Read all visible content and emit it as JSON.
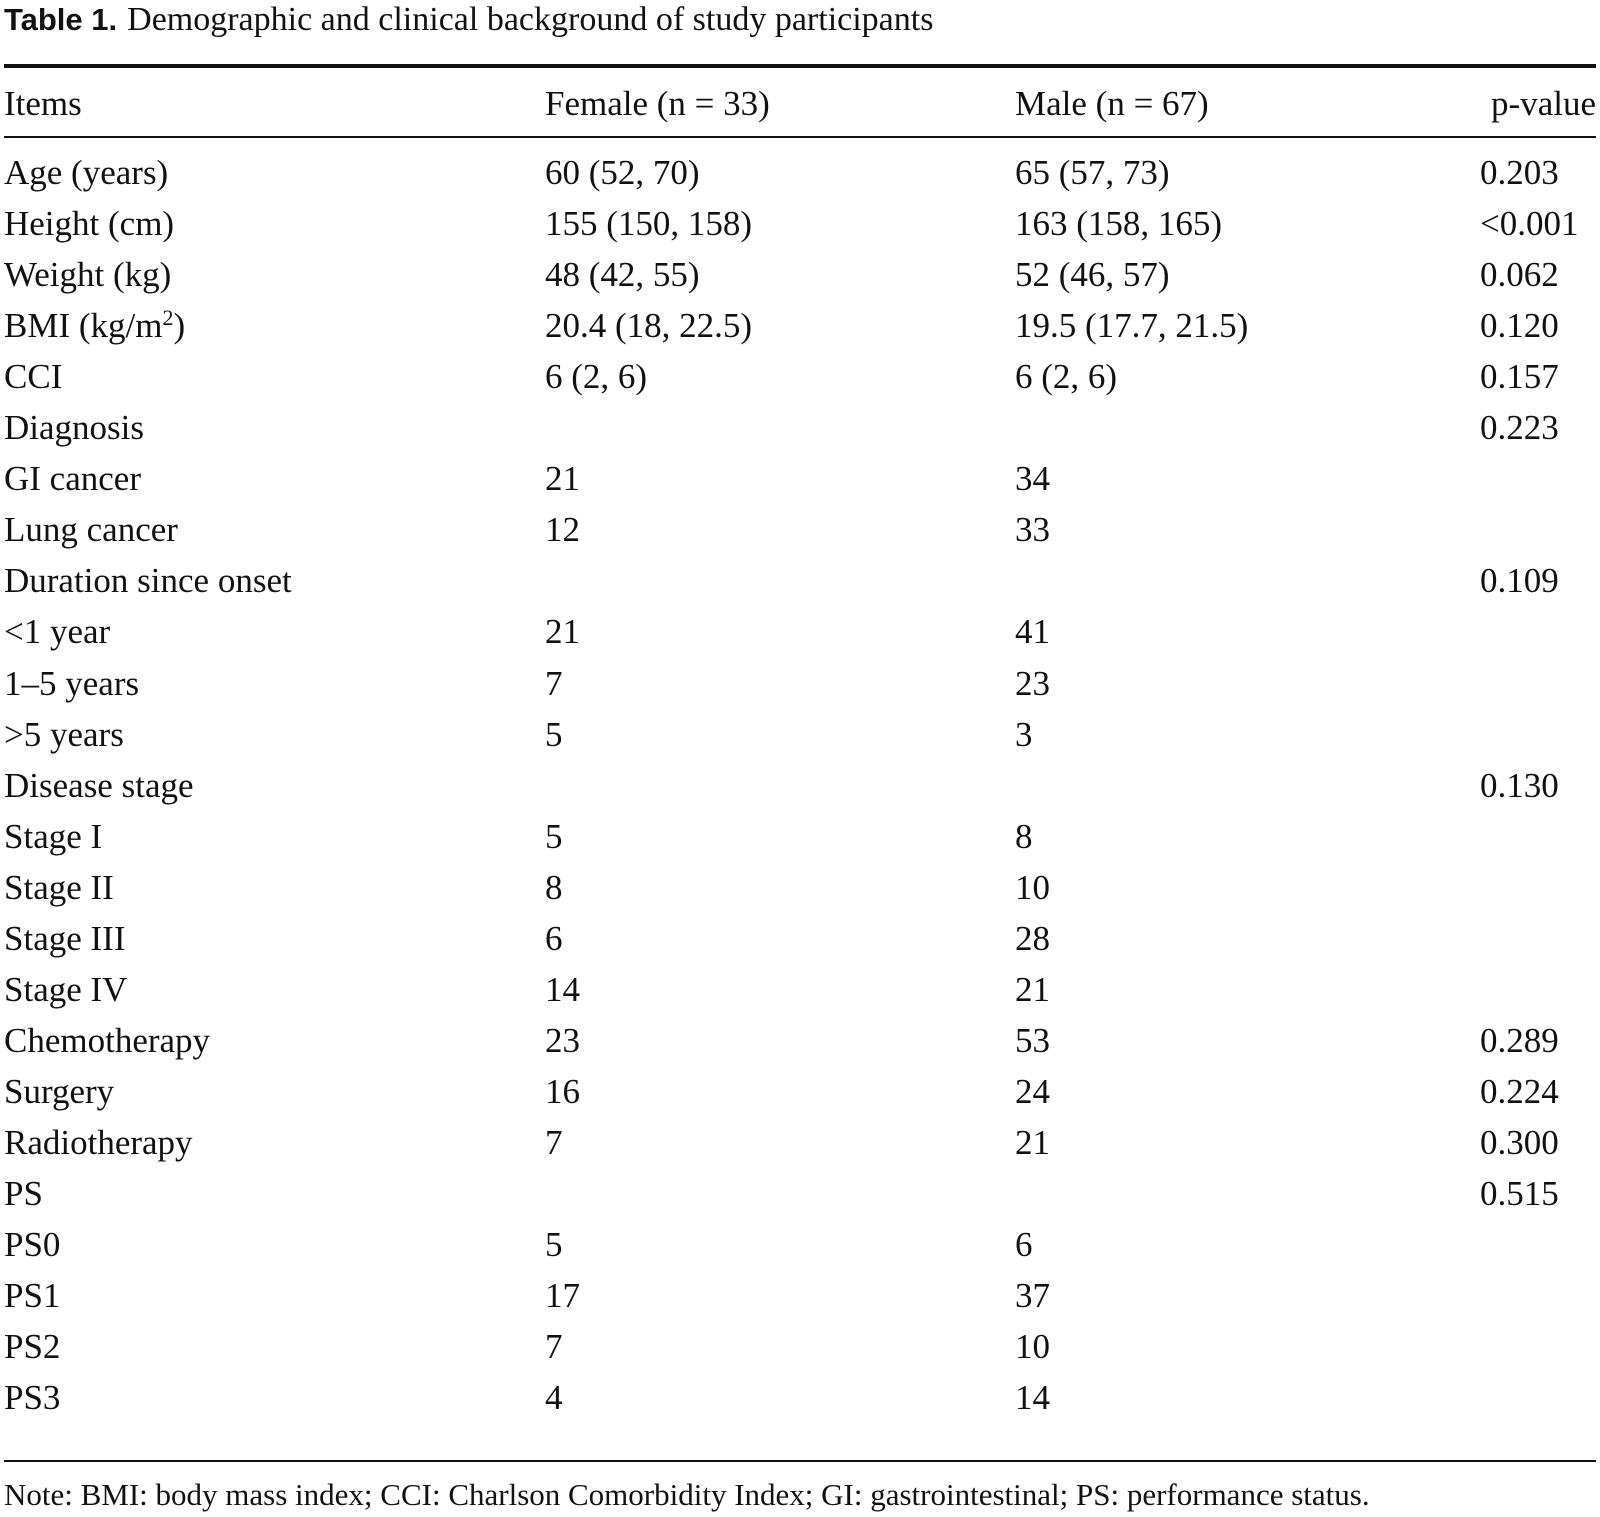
{
  "caption": {
    "label": "Table 1.",
    "text": "Demographic and clinical background of study participants"
  },
  "columns": [
    "Items",
    "Female (n = 33)",
    "Male (n = 67)",
    "p-value"
  ],
  "rows": [
    {
      "item": "Age (years)",
      "female": "60 (52, 70)",
      "male": "65 (57, 73)",
      "p": "0.203"
    },
    {
      "item": "Height (cm)",
      "female": "155 (150, 158)",
      "male": "163 (158, 165)",
      "p": "<0.001"
    },
    {
      "item": "Weight (kg)",
      "female": "48 (42, 55)",
      "male": "52 (46, 57)",
      "p": "0.062"
    },
    {
      "item": "BMI (kg/m",
      "item_sup": "2",
      "item_suffix": ")",
      "female": "20.4 (18, 22.5)",
      "male": "19.5 (17.7, 21.5)",
      "p": "0.120"
    },
    {
      "item": "CCI",
      "female": "6 (2, 6)",
      "male": "6 (2, 6)",
      "p": "0.157"
    },
    {
      "item": "Diagnosis",
      "female": "",
      "male": "",
      "p": "0.223"
    },
    {
      "item": "GI cancer",
      "female": "21",
      "male": "34",
      "p": ""
    },
    {
      "item": "Lung cancer",
      "female": "12",
      "male": "33",
      "p": ""
    },
    {
      "item": "Duration since onset",
      "female": "",
      "male": "",
      "p": "0.109"
    },
    {
      "item": "<1 year",
      "female": "21",
      "male": "41",
      "p": ""
    },
    {
      "item": "1–5 years",
      "female": "7",
      "male": "23",
      "p": ""
    },
    {
      "item": ">5 years",
      "female": "5",
      "male": "3",
      "p": ""
    },
    {
      "item": "Disease stage",
      "female": "",
      "male": "",
      "p": "0.130"
    },
    {
      "item": "Stage I",
      "female": "5",
      "male": "8",
      "p": ""
    },
    {
      "item": "Stage II",
      "female": "8",
      "male": "10",
      "p": ""
    },
    {
      "item": "Stage III",
      "female": "6",
      "male": "28",
      "p": ""
    },
    {
      "item": "Stage IV",
      "female": "14",
      "male": "21",
      "p": ""
    },
    {
      "item": "Chemotherapy",
      "female": "23",
      "male": "53",
      "p": "0.289"
    },
    {
      "item": "Surgery",
      "female": "16",
      "male": "24",
      "p": "0.224"
    },
    {
      "item": "Radiotherapy",
      "female": "7",
      "male": "21",
      "p": "0.300"
    },
    {
      "item": "PS",
      "female": "",
      "male": "",
      "p": "0.515"
    },
    {
      "item": "PS0",
      "female": "5",
      "male": "6",
      "p": ""
    },
    {
      "item": "PS1",
      "female": "17",
      "male": "37",
      "p": ""
    },
    {
      "item": "PS2",
      "female": "7",
      "male": "10",
      "p": ""
    },
    {
      "item": "PS3",
      "female": "4",
      "male": "14",
      "p": ""
    }
  ],
  "note": "Note: BMI: body mass index; CCI: Charlson Comorbidity Index; GI: gastrointestinal; PS: performance status."
}
